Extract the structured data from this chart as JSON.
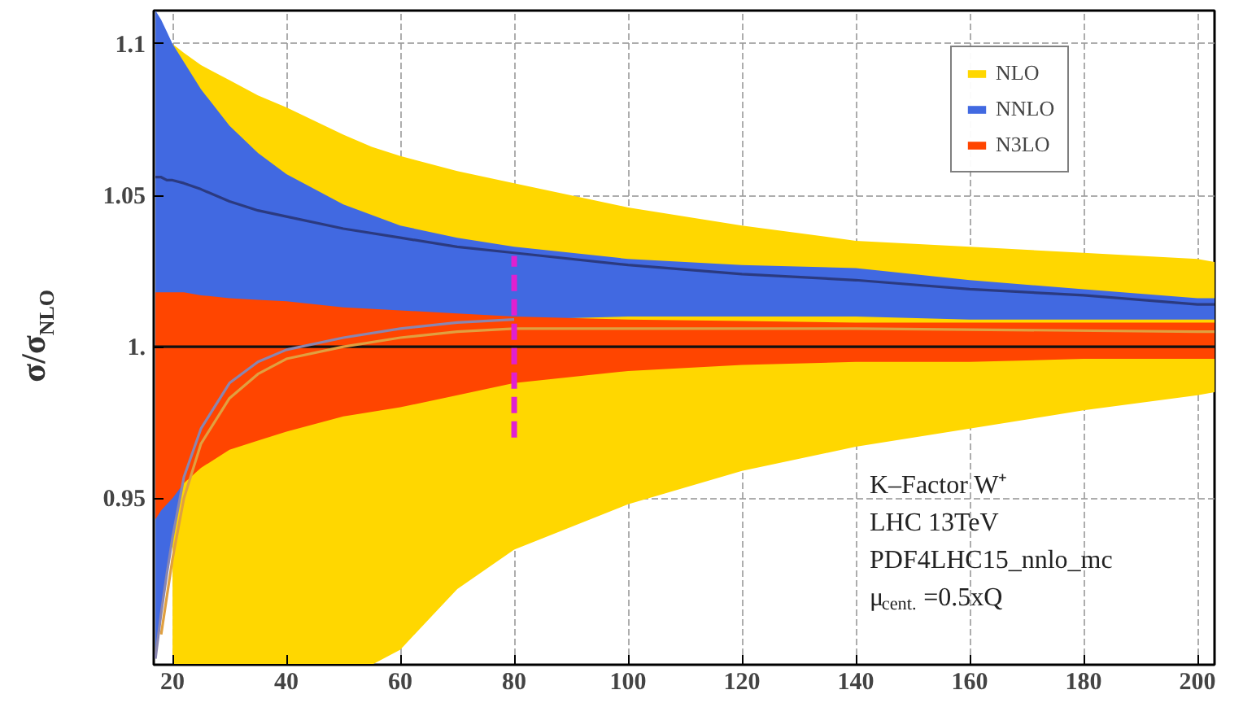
{
  "chart_data": {
    "type": "line",
    "ylabel": "σ/σ$_{NLO}$",
    "xlim": [
      16.7,
      203
    ],
    "ylim": [
      0.895,
      1.111
    ],
    "xticks": [
      20,
      40,
      60,
      80,
      100,
      120,
      140,
      160,
      180,
      200
    ],
    "yticks": [
      {
        "value": 0.95,
        "label": "0.95"
      },
      {
        "value": 1.0,
        "label": "1."
      },
      {
        "value": 1.05,
        "label": "1.05"
      },
      {
        "value": 1.1,
        "label": "1.1"
      }
    ],
    "grid": true,
    "legend": "top right",
    "annotations": [
      "K–Factor W⁺",
      "LHC 13TeV",
      "PDF4LHC15_nnlo_mc",
      "μ$_{cent.}$=0.5xQ"
    ],
    "series": [
      {
        "name": "NLO",
        "color": "#ffd700",
        "x": [
          20,
          22,
          25,
          30,
          35,
          40,
          50,
          55,
          60,
          70,
          80,
          100,
          120,
          140,
          160,
          180,
          200,
          203
        ],
        "values": [
          null,
          null,
          null,
          null,
          null,
          null,
          null,
          null,
          null,
          null,
          null,
          null,
          null,
          null,
          null,
          null,
          null,
          null
        ],
        "upper": [
          1.1,
          1.097,
          1.093,
          1.088,
          1.083,
          1.079,
          1.07,
          1.066,
          1.063,
          1.058,
          1.054,
          1.046,
          1.04,
          1.035,
          1.033,
          1.031,
          1.029,
          1.028
        ],
        "lower": [
          0.895,
          0.895,
          0.895,
          0.895,
          0.895,
          0.895,
          0.895,
          0.895,
          0.9,
          0.92,
          0.933,
          0.948,
          0.959,
          0.967,
          0.973,
          0.979,
          0.984,
          0.985
        ]
      },
      {
        "name": "NNLO",
        "color": "#4169e1",
        "x": [
          17,
          18,
          19,
          20,
          22,
          25,
          30,
          35,
          40,
          50,
          60,
          70,
          80,
          100,
          120,
          140,
          160,
          180,
          200,
          203
        ],
        "values": [
          null,
          null,
          null,
          null,
          null,
          null,
          null,
          null,
          null,
          null,
          null,
          null,
          null,
          null,
          null,
          null,
          null,
          null,
          null,
          null
        ],
        "upper": [
          1.111,
          1.108,
          1.104,
          1.1,
          1.094,
          1.085,
          1.073,
          1.064,
          1.057,
          1.047,
          1.04,
          1.036,
          1.033,
          1.029,
          1.027,
          1.026,
          1.022,
          1.019,
          1.016,
          1.016
        ],
        "lower": [
          0.897,
          0.912,
          0.925,
          0.937,
          0.957,
          0.973,
          0.988,
          0.995,
          0.999,
          1.003,
          1.006,
          1.008,
          1.009,
          1.01,
          1.01,
          1.01,
          1.009,
          1.009,
          1.009,
          1.009
        ]
      },
      {
        "name": "N3LO",
        "color": "#ff4500",
        "x": [
          17,
          18,
          20,
          22,
          25,
          30,
          35,
          40,
          50,
          60,
          70,
          80,
          100,
          120,
          140,
          160,
          180,
          200,
          203
        ],
        "values": [
          null,
          null,
          null,
          null,
          null,
          null,
          null,
          null,
          null,
          null,
          null,
          null,
          null,
          null,
          null,
          null,
          null,
          null,
          null
        ],
        "upper": [
          1.018,
          1.018,
          1.018,
          1.018,
          1.017,
          1.016,
          1.0155,
          1.015,
          1.013,
          1.012,
          1.011,
          1.01,
          1.009,
          1.0085,
          1.008,
          1.008,
          1.008,
          1.008,
          1.008
        ],
        "lower": [
          0.943,
          0.946,
          0.95,
          0.955,
          0.96,
          0.966,
          0.969,
          0.972,
          0.977,
          0.98,
          0.984,
          0.988,
          0.992,
          0.994,
          0.995,
          0.995,
          0.996,
          0.996,
          0.996
        ]
      },
      {
        "color": "#111111",
        "x": [
          16.7,
          203
        ],
        "values": [
          1,
          1
        ]
      },
      {
        "color": "#2b3a80",
        "x": [
          17,
          18,
          19,
          20,
          22,
          25,
          30,
          35,
          40,
          50,
          60,
          70,
          80,
          100,
          120,
          140,
          160,
          180,
          200,
          203
        ],
        "values": [
          1.056,
          1.056,
          1.055,
          1.055,
          1.054,
          1.052,
          1.048,
          1.045,
          1.043,
          1.039,
          1.036,
          1.033,
          1.031,
          1.027,
          1.024,
          1.022,
          1.019,
          1.017,
          1.014,
          1.014
        ]
      },
      {
        "color": "#8a86b0",
        "x": [
          17,
          18,
          19,
          20,
          22,
          25,
          30,
          35,
          40,
          50,
          60,
          70,
          80
        ],
        "values": [
          0.897,
          0.912,
          0.925,
          0.937,
          0.957,
          0.973,
          0.988,
          0.995,
          0.999,
          1.003,
          1.006,
          1.008,
          1.009
        ]
      },
      {
        "color": "#e0a040",
        "x": [
          18,
          20,
          22,
          25,
          30,
          35,
          40,
          50,
          60,
          70,
          80,
          100,
          140,
          200,
          203
        ],
        "values": [
          0.905,
          0.93,
          0.95,
          0.968,
          0.983,
          0.991,
          0.996,
          1.0,
          1.003,
          1.005,
          1.006,
          1.006,
          1.006,
          1.005,
          1.005
        ]
      },
      {
        "color": "#e020d0",
        "line_style": "dashed",
        "x": [
          80,
          80
        ],
        "values": [
          0.97,
          1.03
        ]
      }
    ]
  }
}
